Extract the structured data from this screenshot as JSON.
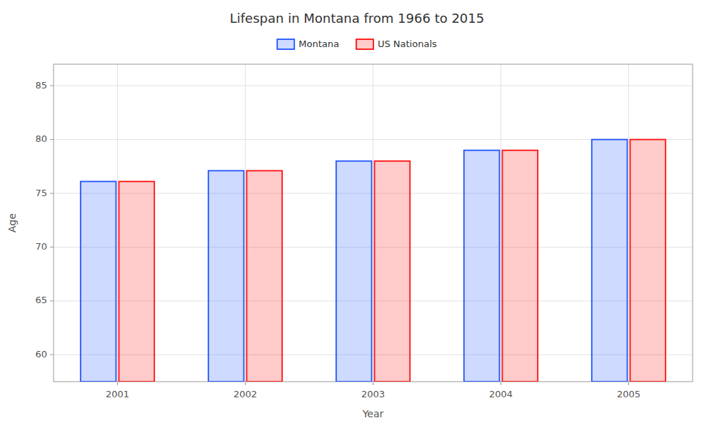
{
  "chart_data": {
    "type": "bar",
    "title": "Lifespan in Montana from 1966 to 2015",
    "x_label": "Year",
    "y_label": "Age",
    "categories": [
      "2001",
      "2002",
      "2003",
      "2004",
      "2005"
    ],
    "series": [
      {
        "name": "Montana",
        "color": "#2255ff",
        "values": [
          76.1,
          77.1,
          78.0,
          79.0,
          80.0
        ]
      },
      {
        "name": "US Nationals",
        "color": "#ff1111",
        "values": [
          76.1,
          77.1,
          78.0,
          79.0,
          80.0
        ]
      }
    ],
    "ylim": [
      57.5,
      87
    ],
    "yticks": [
      60,
      65,
      70,
      75,
      80,
      85
    ],
    "grid": true,
    "legend": "top"
  }
}
